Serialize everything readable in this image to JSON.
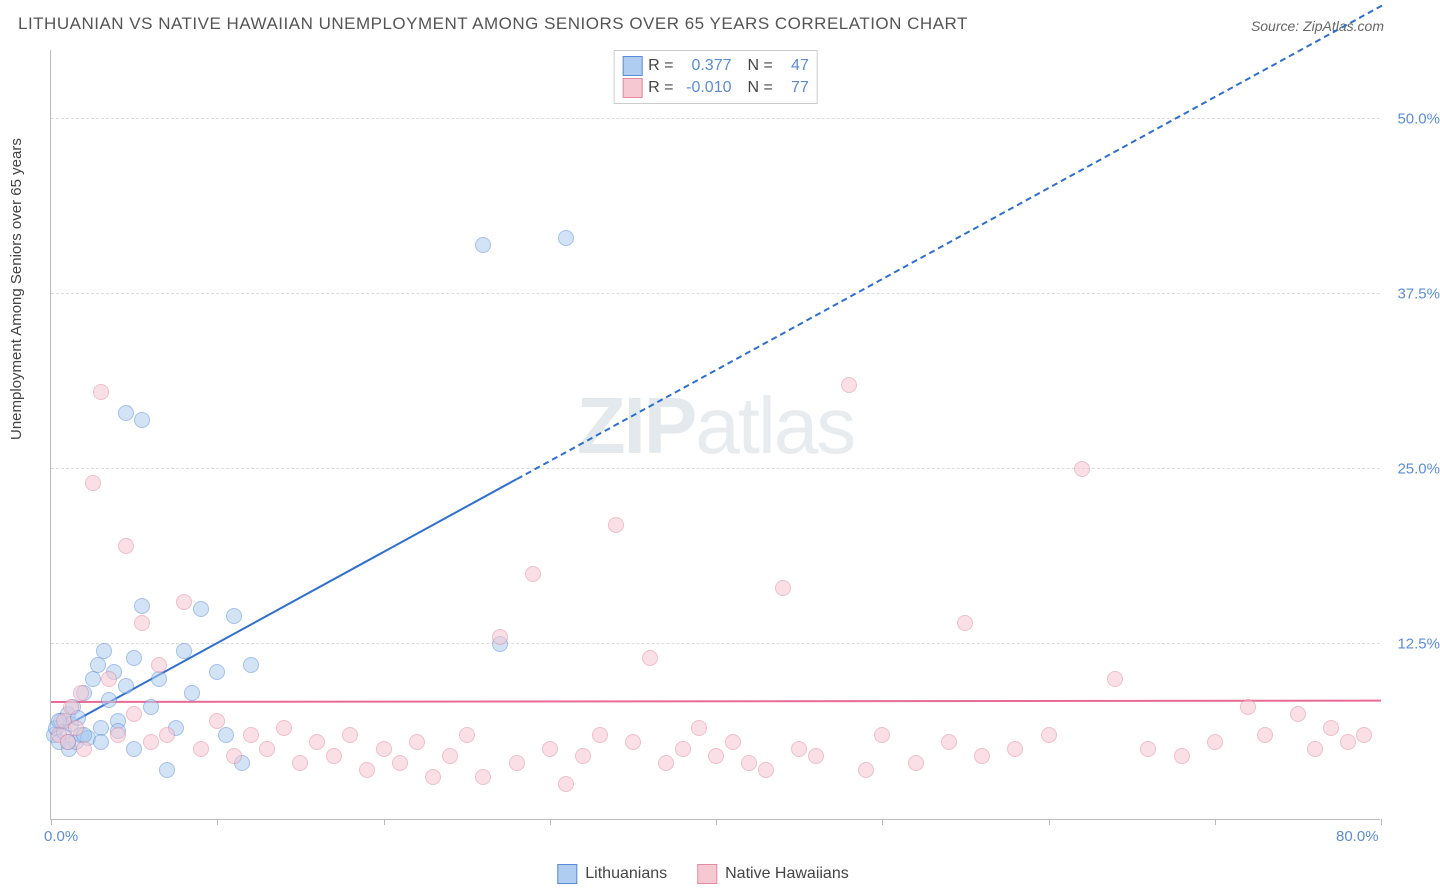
{
  "title": "LITHUANIAN VS NATIVE HAWAIIAN UNEMPLOYMENT AMONG SENIORS OVER 65 YEARS CORRELATION CHART",
  "source": "Source: ZipAtlas.com",
  "watermark": {
    "bold": "ZIP",
    "light": "atlas"
  },
  "chart": {
    "type": "scatter",
    "y_label": "Unemployment Among Seniors over 65 years",
    "x_min": 0.0,
    "x_max": 80.0,
    "y_min": 0.0,
    "y_max": 55.0,
    "x_ticks": [
      0,
      10,
      20,
      30,
      40,
      50,
      60,
      70,
      80
    ],
    "y_gridlines": [
      12.5,
      25.0,
      37.5,
      50.0
    ],
    "y_tick_labels": [
      "12.5%",
      "25.0%",
      "37.5%",
      "50.0%"
    ],
    "x_origin_label": "0.0%",
    "x_max_label": "80.0%",
    "background_color": "#ffffff",
    "grid_color": "#dddddd",
    "axis_color": "#bbbbbb",
    "tick_label_color": "#5b8dd6",
    "label_fontsize": 15,
    "title_fontsize": 17,
    "point_radius": 8,
    "point_opacity": 0.55,
    "series": [
      {
        "name": "Lithuanians",
        "fill": "#aecdf0",
        "stroke": "#5b8dd6",
        "R": "0.377",
        "N": "47",
        "trend": {
          "color": "#2f6fd0",
          "x1": 0,
          "y1": 6.0,
          "x2": 80,
          "y2": 58,
          "solid_until_x": 28
        },
        "points": [
          [
            0.2,
            6.0
          ],
          [
            0.3,
            6.5
          ],
          [
            0.5,
            5.5
          ],
          [
            0.6,
            7.0
          ],
          [
            0.8,
            6.2
          ],
          [
            1.0,
            7.5
          ],
          [
            1.1,
            5.0
          ],
          [
            1.2,
            6.8
          ],
          [
            1.3,
            8.0
          ],
          [
            1.5,
            5.5
          ],
          [
            1.6,
            7.2
          ],
          [
            1.8,
            6.0
          ],
          [
            2.0,
            9.0
          ],
          [
            2.2,
            5.8
          ],
          [
            2.5,
            10.0
          ],
          [
            2.8,
            11.0
          ],
          [
            3.0,
            6.5
          ],
          [
            3.2,
            12.0
          ],
          [
            3.5,
            8.5
          ],
          [
            3.8,
            10.5
          ],
          [
            4.0,
            7.0
          ],
          [
            4.5,
            9.5
          ],
          [
            5.0,
            11.5
          ],
          [
            5.0,
            5.0
          ],
          [
            5.5,
            15.2
          ],
          [
            6.0,
            8.0
          ],
          [
            6.5,
            10.0
          ],
          [
            7.0,
            3.5
          ],
          [
            7.5,
            6.5
          ],
          [
            8.0,
            12.0
          ],
          [
            8.5,
            9.0
          ],
          [
            9.0,
            15.0
          ],
          [
            10.0,
            10.5
          ],
          [
            10.5,
            6.0
          ],
          [
            11.0,
            14.5
          ],
          [
            12.0,
            11.0
          ],
          [
            4.5,
            29.0
          ],
          [
            5.5,
            28.5
          ],
          [
            26.0,
            41.0
          ],
          [
            31.0,
            41.5
          ],
          [
            27.0,
            12.5
          ],
          [
            3.0,
            5.5
          ],
          [
            4.0,
            6.3
          ],
          [
            2.0,
            6.0
          ],
          [
            1.0,
            5.5
          ],
          [
            0.5,
            7.0
          ],
          [
            11.5,
            4.0
          ]
        ]
      },
      {
        "name": "Native Hawaiians",
        "fill": "#f6c8d2",
        "stroke": "#e48aa2",
        "R": "-0.010",
        "N": "77",
        "trend": {
          "color": "#e86b94",
          "x1": 0,
          "y1": 8.3,
          "x2": 80,
          "y2": 8.4,
          "solid_until_x": 80
        },
        "points": [
          [
            0.5,
            6.0
          ],
          [
            0.8,
            7.0
          ],
          [
            1.0,
            5.5
          ],
          [
            1.2,
            8.0
          ],
          [
            1.5,
            6.5
          ],
          [
            1.8,
            9.0
          ],
          [
            2.0,
            5.0
          ],
          [
            2.5,
            24.0
          ],
          [
            3.0,
            30.5
          ],
          [
            3.5,
            10.0
          ],
          [
            4.0,
            6.0
          ],
          [
            4.5,
            19.5
          ],
          [
            5.0,
            7.5
          ],
          [
            5.5,
            14.0
          ],
          [
            6.0,
            5.5
          ],
          [
            6.5,
            11.0
          ],
          [
            7.0,
            6.0
          ],
          [
            8.0,
            15.5
          ],
          [
            9.0,
            5.0
          ],
          [
            10.0,
            7.0
          ],
          [
            11.0,
            4.5
          ],
          [
            12.0,
            6.0
          ],
          [
            13.0,
            5.0
          ],
          [
            14.0,
            6.5
          ],
          [
            15.0,
            4.0
          ],
          [
            16.0,
            5.5
          ],
          [
            17.0,
            4.5
          ],
          [
            18.0,
            6.0
          ],
          [
            19.0,
            3.5
          ],
          [
            20.0,
            5.0
          ],
          [
            21.0,
            4.0
          ],
          [
            22.0,
            5.5
          ],
          [
            23.0,
            3.0
          ],
          [
            24.0,
            4.5
          ],
          [
            25.0,
            6.0
          ],
          [
            27.0,
            13.0
          ],
          [
            28.0,
            4.0
          ],
          [
            29.0,
            17.5
          ],
          [
            30.0,
            5.0
          ],
          [
            32.0,
            4.5
          ],
          [
            33.0,
            6.0
          ],
          [
            34.0,
            21.0
          ],
          [
            35.0,
            5.5
          ],
          [
            36.0,
            11.5
          ],
          [
            37.0,
            4.0
          ],
          [
            38.0,
            5.0
          ],
          [
            39.0,
            6.5
          ],
          [
            40.0,
            4.5
          ],
          [
            41.0,
            5.5
          ],
          [
            42.0,
            4.0
          ],
          [
            44.0,
            16.5
          ],
          [
            45.0,
            5.0
          ],
          [
            46.0,
            4.5
          ],
          [
            48.0,
            31.0
          ],
          [
            49.0,
            3.5
          ],
          [
            50.0,
            6.0
          ],
          [
            52.0,
            4.0
          ],
          [
            54.0,
            5.5
          ],
          [
            55.0,
            14.0
          ],
          [
            56.0,
            4.5
          ],
          [
            58.0,
            5.0
          ],
          [
            60.0,
            6.0
          ],
          [
            62.0,
            25.0
          ],
          [
            64.0,
            10.0
          ],
          [
            66.0,
            5.0
          ],
          [
            68.0,
            4.5
          ],
          [
            70.0,
            5.5
          ],
          [
            72.0,
            8.0
          ],
          [
            73.0,
            6.0
          ],
          [
            75.0,
            7.5
          ],
          [
            76.0,
            5.0
          ],
          [
            77.0,
            6.5
          ],
          [
            78.0,
            5.5
          ],
          [
            79.0,
            6.0
          ],
          [
            31.0,
            2.5
          ],
          [
            26.0,
            3.0
          ],
          [
            43.0,
            3.5
          ]
        ]
      }
    ]
  },
  "stats_legend": {
    "r_label": "R =",
    "n_label": "N ="
  },
  "bottom_legend": {
    "items": [
      "Lithuanians",
      "Native Hawaiians"
    ]
  }
}
